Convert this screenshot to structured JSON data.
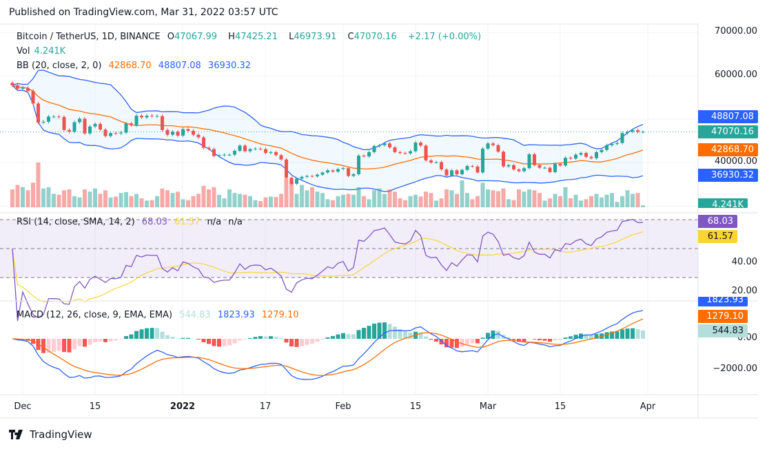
{
  "published": "Published on TradingView.com, Mar 31, 2022 03:57 UTC",
  "brand": "TradingView",
  "legend": {
    "symbol": "Bitcoin / TetherUS, 1D, BINANCE",
    "o_label": "O",
    "open": "47067.99",
    "h_label": "H",
    "high": "47425.21",
    "l_label": "L",
    "low": "46973.91",
    "c_label": "C",
    "close": "47070.16",
    "change": "+2.17 (+0.00%)",
    "vol_label": "Vol",
    "vol": "4.241K",
    "bb_label": "BB (20, close, 2, 0)",
    "bb_basis": "42868.70",
    "bb_upper": "48807.08",
    "bb_lower": "36930.32",
    "rsi_label": "RSI (14, close, SMA, 14, 2)",
    "rsi": "68.03",
    "rsi_ma": "61.57",
    "na1": "n/a",
    "na2": "n/a",
    "macd_label": "MACD (12, 26, close, 9, EMA, EMA)",
    "macd_hist": "544.83",
    "macd": "1823.93",
    "macd_signal": "1279.10"
  },
  "axis": {
    "price_ticks": [
      "70000.00",
      "60000.00",
      "40000.00"
    ],
    "rsi_ticks": [
      "40.00",
      "20.00"
    ],
    "macd_ticks": [
      "0.00",
      "−2000.00"
    ],
    "x_ticks": [
      "Dec",
      "15",
      "2022",
      "17",
      "Feb",
      "15",
      "Mar",
      "15",
      "Apr"
    ],
    "tags": {
      "bb_upper": "48807.08",
      "last": "47070.16",
      "bb_basis": "42868.70",
      "bb_lower": "36930.32",
      "vol": "4.241K",
      "rsi": "68.03",
      "rsi_ma": "61.57",
      "macd": "1823.93",
      "macd_signal": "1279.10",
      "macd_hist": "544.83"
    }
  },
  "colors": {
    "up": "#26a69a",
    "down": "#ef5350",
    "bb_band": "#2962ff",
    "bb_basis": "#ff6d00",
    "rsi": "#7e57c2",
    "rsi_ma": "#fbd434",
    "macd": "#2962ff",
    "signal": "#ff6d00"
  },
  "chart_data": {
    "type": "candlestick",
    "title": "Bitcoin / TetherUS, 1D, BINANCE",
    "ylim": [
      33000,
      72000
    ],
    "indicators": [
      "Volume",
      "BB (20, close, 2, 0)",
      "RSI (14, close, SMA, 14, 2)",
      "MACD (12, 26, close, 9, EMA, EMA)"
    ],
    "columns": [
      "date",
      "close",
      "volume_k"
    ],
    "candles": [
      [
        "11-29",
        57800,
        40
      ],
      [
        "11-30",
        57000,
        50
      ],
      [
        "12-01",
        57200,
        45
      ],
      [
        "12-02",
        56500,
        38
      ],
      [
        "12-03",
        53600,
        55
      ],
      [
        "12-04",
        49200,
        100
      ],
      [
        "12-05",
        49400,
        42
      ],
      [
        "12-06",
        50600,
        45
      ],
      [
        "12-07",
        50600,
        30
      ],
      [
        "12-08",
        50500,
        28
      ],
      [
        "12-09",
        47500,
        38
      ],
      [
        "12-10",
        47100,
        40
      ],
      [
        "12-11",
        49300,
        25
      ],
      [
        "12-12",
        50100,
        22
      ],
      [
        "12-13",
        46700,
        40
      ],
      [
        "12-14",
        48300,
        35
      ],
      [
        "12-15",
        48900,
        42
      ],
      [
        "12-16",
        47600,
        30
      ],
      [
        "12-17",
        46100,
        38
      ],
      [
        "12-18",
        46800,
        22
      ],
      [
        "12-19",
        46700,
        24
      ],
      [
        "12-20",
        46900,
        32
      ],
      [
        "12-21",
        49000,
        34
      ],
      [
        "12-22",
        48600,
        25
      ],
      [
        "12-23",
        50800,
        30
      ],
      [
        "12-24",
        50400,
        20
      ],
      [
        "12-25",
        50800,
        15
      ],
      [
        "12-26",
        50700,
        16
      ],
      [
        "12-27",
        50700,
        25
      ],
      [
        "12-28",
        47500,
        42
      ],
      [
        "12-29",
        46400,
        38
      ],
      [
        "12-30",
        47100,
        32
      ],
      [
        "12-31",
        46200,
        35
      ],
      [
        "01-01",
        47700,
        18
      ],
      [
        "01-02",
        47300,
        16
      ],
      [
        "01-03",
        46400,
        25
      ],
      [
        "01-04",
        45800,
        30
      ],
      [
        "01-05",
        43400,
        48
      ],
      [
        "01-06",
        43100,
        40
      ],
      [
        "01-07",
        41500,
        45
      ],
      [
        "01-08",
        41700,
        28
      ],
      [
        "01-09",
        41800,
        20
      ],
      [
        "01-10",
        41800,
        40
      ],
      [
        "01-11",
        42700,
        32
      ],
      [
        "01-12",
        43900,
        30
      ],
      [
        "01-13",
        42600,
        28
      ],
      [
        "01-14",
        43100,
        25
      ],
      [
        "01-15",
        43200,
        16
      ],
      [
        "01-16",
        43100,
        14
      ],
      [
        "01-17",
        42200,
        22
      ],
      [
        "01-18",
        42400,
        24
      ],
      [
        "01-19",
        41700,
        23
      ],
      [
        "01-20",
        40700,
        30
      ],
      [
        "01-21",
        36500,
        65
      ],
      [
        "01-22",
        35100,
        58
      ],
      [
        "01-23",
        36300,
        30
      ],
      [
        "01-24",
        36700,
        50
      ],
      [
        "01-25",
        36900,
        38
      ],
      [
        "01-26",
        36800,
        45
      ],
      [
        "01-27",
        37200,
        35
      ],
      [
        "01-28",
        37700,
        32
      ],
      [
        "01-29",
        38200,
        18
      ],
      [
        "01-30",
        37900,
        16
      ],
      [
        "01-31",
        38500,
        25
      ],
      [
        "02-01",
        38700,
        28
      ],
      [
        "02-02",
        36900,
        30
      ],
      [
        "02-03",
        37300,
        28
      ],
      [
        "02-04",
        41600,
        45
      ],
      [
        "02-05",
        41400,
        25
      ],
      [
        "02-06",
        42400,
        18
      ],
      [
        "02-07",
        43800,
        38
      ],
      [
        "02-08",
        44000,
        42
      ],
      [
        "02-09",
        44400,
        30
      ],
      [
        "02-10",
        43500,
        40
      ],
      [
        "02-11",
        42400,
        35
      ],
      [
        "02-12",
        42200,
        20
      ],
      [
        "02-13",
        42100,
        16
      ],
      [
        "02-14",
        42600,
        25
      ],
      [
        "02-15",
        44600,
        28
      ],
      [
        "02-16",
        43900,
        24
      ],
      [
        "02-17",
        40500,
        35
      ],
      [
        "02-18",
        40000,
        32
      ],
      [
        "02-19",
        40100,
        15
      ],
      [
        "02-20",
        38400,
        20
      ],
      [
        "02-21",
        37000,
        40
      ],
      [
        "02-22",
        38200,
        38
      ],
      [
        "02-23",
        37300,
        30
      ],
      [
        "02-24",
        38300,
        60
      ],
      [
        "02-25",
        39200,
        32
      ],
      [
        "02-26",
        39100,
        18
      ],
      [
        "02-27",
        37700,
        25
      ],
      [
        "02-28",
        43200,
        55
      ],
      [
        "03-01",
        44400,
        40
      ],
      [
        "03-02",
        44000,
        38
      ],
      [
        "03-03",
        42500,
        36
      ],
      [
        "03-04",
        39100,
        42
      ],
      [
        "03-05",
        39400,
        18
      ],
      [
        "03-06",
        38400,
        16
      ],
      [
        "03-07",
        38000,
        40
      ],
      [
        "03-08",
        38700,
        35
      ],
      [
        "03-09",
        41900,
        40
      ],
      [
        "03-10",
        39400,
        38
      ],
      [
        "03-11",
        38800,
        32
      ],
      [
        "03-12",
        38800,
        15
      ],
      [
        "03-13",
        37800,
        20
      ],
      [
        "03-14",
        39700,
        30
      ],
      [
        "03-15",
        39300,
        25
      ],
      [
        "03-16",
        41100,
        45
      ],
      [
        "03-17",
        40900,
        20
      ],
      [
        "03-18",
        41800,
        28
      ],
      [
        "03-19",
        42200,
        15
      ],
      [
        "03-20",
        41300,
        18
      ],
      [
        "03-21",
        41000,
        25
      ],
      [
        "03-22",
        42400,
        30
      ],
      [
        "03-23",
        42900,
        22
      ],
      [
        "03-24",
        44000,
        28
      ],
      [
        "03-25",
        44300,
        32
      ],
      [
        "03-26",
        44500,
        12
      ],
      [
        "03-27",
        46800,
        25
      ],
      [
        "03-28",
        47100,
        38
      ],
      [
        "03-29",
        47450,
        30
      ],
      [
        "03-30",
        47067.99,
        32
      ],
      [
        "03-31",
        47070.16,
        4.241
      ]
    ]
  }
}
